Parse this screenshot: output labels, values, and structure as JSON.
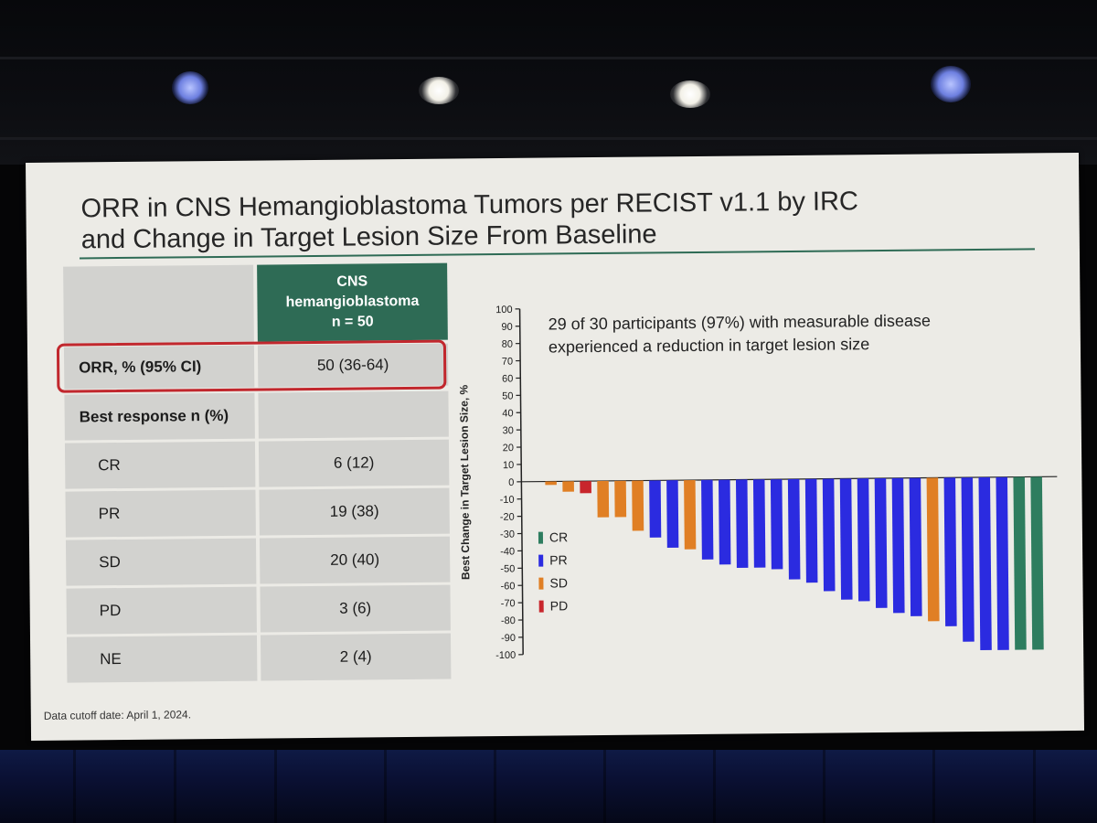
{
  "slide": {
    "title_line1": "ORR in CNS Hemangioblastoma Tumors per RECIST v1.1 by IRC",
    "title_line2": "and Change in Target Lesion Size From Baseline",
    "footnote": "Data cutoff date: April 1, 2024."
  },
  "table": {
    "header_line1": "CNS",
    "header_line2": "hemangioblastoma",
    "header_line3": "n = 50",
    "rows": [
      {
        "label": "ORR, % (95% CI)",
        "value": "50 (36-64)"
      },
      {
        "label": "Best response n (%)",
        "value": ""
      },
      {
        "label": "CR",
        "value": "6 (12)"
      },
      {
        "label": "PR",
        "value": "19 (38)"
      },
      {
        "label": "SD",
        "value": "20 (40)"
      },
      {
        "label": "PD",
        "value": "3 (6)"
      },
      {
        "label": "NE",
        "value": "2 (4)"
      }
    ]
  },
  "callout": {
    "line1": "29 of 30 participants (97%) with measurable disease",
    "line2": "experienced a reduction in target lesion size"
  },
  "colors": {
    "CR": "#2e7d5f",
    "PR": "#2b2be0",
    "SD": "#e07f24",
    "PD": "#c8262c",
    "header": "#2e6b55",
    "highlight": "#c1272d"
  },
  "chart_data": {
    "type": "bar",
    "ylabel": "Best Change in Target Lesion Size, %",
    "ylim": [
      -100,
      100
    ],
    "yticks": [
      100,
      90,
      80,
      70,
      60,
      50,
      40,
      30,
      20,
      10,
      0,
      -10,
      -20,
      -30,
      -40,
      -50,
      -60,
      -70,
      -80,
      -90,
      -100
    ],
    "legend": [
      "CR",
      "PR",
      "SD",
      "PD"
    ],
    "legend_position": "bottom-left",
    "bars": [
      {
        "value": -2,
        "response": "SD"
      },
      {
        "value": -6,
        "response": "SD"
      },
      {
        "value": -7,
        "response": "PD"
      },
      {
        "value": -21,
        "response": "SD"
      },
      {
        "value": -21,
        "response": "SD"
      },
      {
        "value": -29,
        "response": "SD"
      },
      {
        "value": -33,
        "response": "PR"
      },
      {
        "value": -39,
        "response": "PR"
      },
      {
        "value": -40,
        "response": "SD"
      },
      {
        "value": -46,
        "response": "PR"
      },
      {
        "value": -49,
        "response": "PR"
      },
      {
        "value": -51,
        "response": "PR"
      },
      {
        "value": -51,
        "response": "PR"
      },
      {
        "value": -52,
        "response": "PR"
      },
      {
        "value": -58,
        "response": "PR"
      },
      {
        "value": -60,
        "response": "PR"
      },
      {
        "value": -65,
        "response": "PR"
      },
      {
        "value": -70,
        "response": "PR"
      },
      {
        "value": -71,
        "response": "PR"
      },
      {
        "value": -75,
        "response": "PR"
      },
      {
        "value": -78,
        "response": "PR"
      },
      {
        "value": -80,
        "response": "PR"
      },
      {
        "value": -83,
        "response": "SD"
      },
      {
        "value": -86,
        "response": "PR"
      },
      {
        "value": -95,
        "response": "PR"
      },
      {
        "value": -100,
        "response": "PR"
      },
      {
        "value": -100,
        "response": "PR"
      },
      {
        "value": -100,
        "response": "CR"
      },
      {
        "value": -100,
        "response": "CR"
      }
    ]
  }
}
